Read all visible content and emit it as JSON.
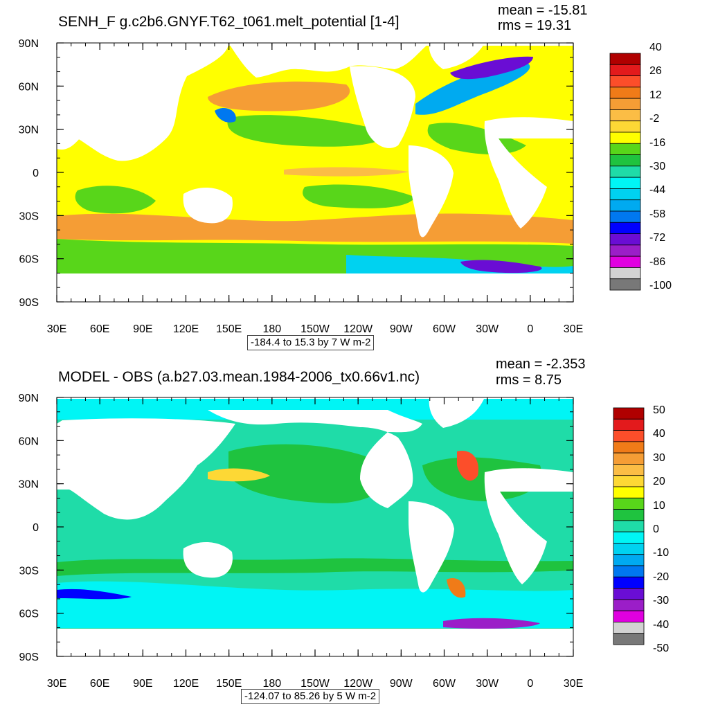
{
  "panels": [
    {
      "title": "SENH_F g.c2b6.GNYF.T62_t061.melt_potential [1-4]",
      "mean_text": "mean = -15.81",
      "rms_text": "rms = 19.31",
      "info_text": "-184.4 to 15.3 by 7 W m-2",
      "colorbar": {
        "labels": [
          "40",
          "26",
          "12",
          "-2",
          "-16",
          "-30",
          "-44",
          "-58",
          "-72",
          "-86",
          "-100"
        ],
        "colors": [
          "#b00000",
          "#e31a1c",
          "#fc4e2a",
          "#f07b18",
          "#f59d35",
          "#fbbd45",
          "#fdd835",
          "#ffff00",
          "#58d61a",
          "#1fc33f",
          "#1fdca8",
          "#00f5f5",
          "#00d2f0",
          "#00aaf0",
          "#0078f0",
          "#0000ff",
          "#6a0dd4",
          "#9b1ec8",
          "#e000e0",
          "#d2d2d2",
          "#787878"
        ]
      }
    },
    {
      "title": "MODEL - OBS (a.b27.03.mean.1984-2006_tx0.66v1.nc)",
      "mean_text": "mean = -2.353",
      "rms_text": "rms = 8.75",
      "info_text": "-124.07 to 85.26 by 5 W m-2",
      "colorbar": {
        "labels": [
          "50",
          "40",
          "30",
          "20",
          "10",
          "0",
          "-10",
          "-20",
          "-30",
          "-40",
          "-50"
        ],
        "colors": [
          "#b00000",
          "#e31a1c",
          "#fc4e2a",
          "#f07b18",
          "#f59d35",
          "#fbbd45",
          "#fdd835",
          "#ffff00",
          "#58d61a",
          "#1fc33f",
          "#1fdca8",
          "#00f5f5",
          "#00d2f0",
          "#00aaf0",
          "#0078f0",
          "#0000ff",
          "#6a0dd4",
          "#9b1ec8",
          "#e000e0",
          "#d2d2d2",
          "#787878"
        ]
      }
    }
  ],
  "axes": {
    "x_ticks": [
      "30E",
      "60E",
      "90E",
      "120E",
      "150E",
      "180",
      "150W",
      "120W",
      "90W",
      "60W",
      "30W",
      "0",
      "30E"
    ],
    "y_ticks": [
      "90N",
      "60N",
      "30N",
      "0",
      "30S",
      "60S",
      "90S"
    ]
  },
  "colors": {
    "land": "#ffffff",
    "top_ocean_base": "#ffff00",
    "bottom_ocean_base": "#1fdca8"
  },
  "chart_data": [
    {
      "type": "heatmap",
      "title": "SENH_F g.c2b6.GNYF.T62_t061.melt_potential [1-4]",
      "x_ticks": [
        "30E",
        "60E",
        "90E",
        "120E",
        "150E",
        "180",
        "150W",
        "120W",
        "90W",
        "60W",
        "30W",
        "0",
        "30E"
      ],
      "y_ticks": [
        "90N",
        "60N",
        "30N",
        "0",
        "30S",
        "60S",
        "90S"
      ],
      "colorbar_levels": [
        40,
        26,
        12,
        -2,
        -16,
        -30,
        -44,
        -58,
        -72,
        -86,
        -100
      ],
      "mean": -15.81,
      "rms": 19.31,
      "range_min": -184.4,
      "range_max": 15.3,
      "interval": 7,
      "units": "W m-2"
    },
    {
      "type": "heatmap",
      "title": "MODEL - OBS (a.b27.03.mean.1984-2006_tx0.66v1.nc)",
      "x_ticks": [
        "30E",
        "60E",
        "90E",
        "120E",
        "150E",
        "180",
        "150W",
        "120W",
        "90W",
        "60W",
        "30W",
        "0",
        "30E"
      ],
      "y_ticks": [
        "90N",
        "60N",
        "30N",
        "0",
        "30S",
        "60S",
        "90S"
      ],
      "colorbar_levels": [
        50,
        40,
        30,
        20,
        10,
        0,
        -10,
        -20,
        -30,
        -40,
        -50
      ],
      "mean": -2.353,
      "rms": 8.75,
      "range_min": -124.07,
      "range_max": 85.26,
      "interval": 5,
      "units": "W m-2"
    }
  ]
}
